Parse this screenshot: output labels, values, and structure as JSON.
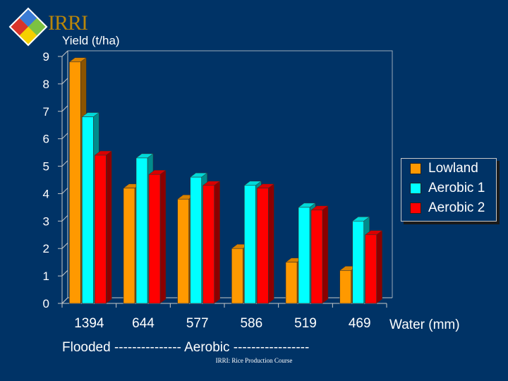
{
  "logo": {
    "text": "IRRI"
  },
  "footer": "IRRI: Rice Production Course",
  "bottom_line": "Flooded  ---------------  Aerobic  -----------------",
  "chart_data": {
    "type": "bar",
    "title": "",
    "ylabel": "Yield (t/ha)",
    "xlabel": "Water (mm)",
    "categories": [
      "1394",
      "644",
      "577",
      "586",
      "519",
      "469"
    ],
    "ylim": [
      0,
      9
    ],
    "yticks": [
      0,
      1,
      2,
      3,
      4,
      5,
      6,
      7,
      8,
      9
    ],
    "grid": false,
    "legend_position": "right",
    "series": [
      {
        "name": "Lowland",
        "color": "#ff9900",
        "values": [
          8.8,
          4.2,
          3.8,
          2.0,
          1.5,
          1.2
        ]
      },
      {
        "name": "Aerobic 1",
        "color": "#00ffff",
        "values": [
          6.8,
          5.3,
          4.6,
          4.3,
          3.5,
          3.0
        ]
      },
      {
        "name": "Aerobic 2",
        "color": "#ff0000",
        "values": [
          5.4,
          4.7,
          4.3,
          4.2,
          3.4,
          2.5
        ]
      }
    ]
  }
}
